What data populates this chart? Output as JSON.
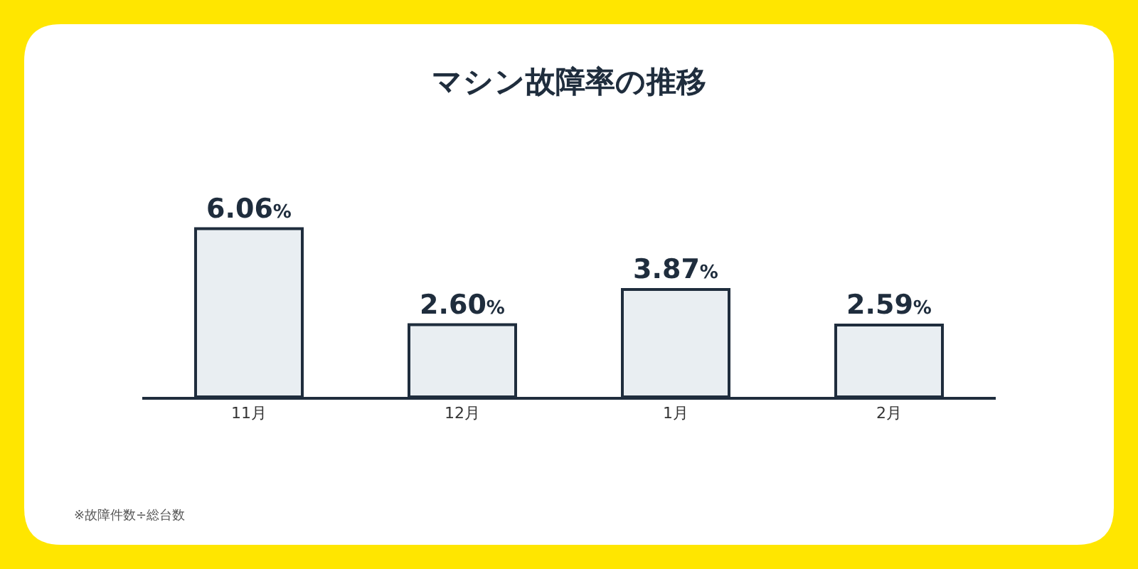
{
  "chart_data": {
    "type": "bar",
    "title": "マシン故障率の推移",
    "categories": [
      "11月",
      "12月",
      "1月",
      "2月"
    ],
    "values": [
      6.06,
      2.6,
      3.87,
      2.59
    ],
    "value_labels": [
      "6.06%",
      "2.60%",
      "3.87%",
      "2.59%"
    ],
    "color": "#e9eef2",
    "annotations": [
      "※故障件数÷総台数"
    ]
  }
}
